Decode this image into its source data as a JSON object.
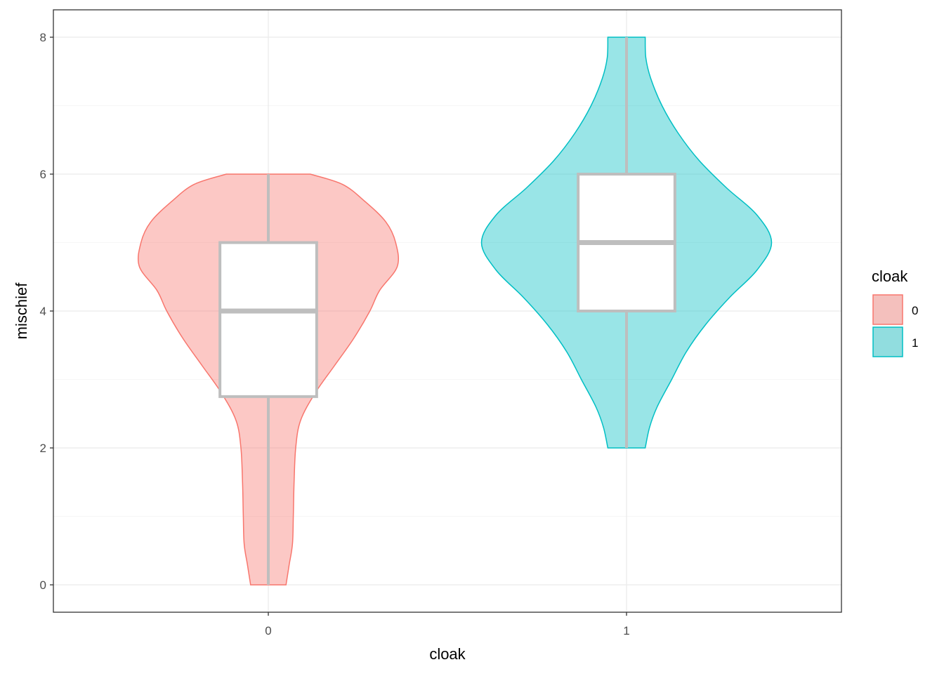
{
  "chart_data": {
    "type": "violin",
    "title": "",
    "xlabel": "cloak",
    "ylabel": "mischief",
    "categories": [
      "0",
      "1"
    ],
    "ylim": [
      -0.4,
      8.4
    ],
    "yticks": [
      0,
      2,
      4,
      6,
      8
    ],
    "grid": true,
    "legend": {
      "title": "cloak",
      "position": "right",
      "entries": [
        {
          "label": "0",
          "fill": "#f8766d",
          "stroke": "#f8766d"
        },
        {
          "label": "1",
          "fill": "#00bfc4",
          "stroke": "#00bfc4"
        }
      ]
    },
    "series": [
      {
        "name": "0",
        "color": "#f8766d",
        "boxplot": {
          "min": 0,
          "q1": 2.75,
          "median": 4,
          "q3": 5,
          "max": 6
        },
        "density_profile": [
          [
            0,
            0.11
          ],
          [
            0.3,
            0.13
          ],
          [
            0.6,
            0.15
          ],
          [
            1.0,
            0.155
          ],
          [
            1.5,
            0.16
          ],
          [
            2.0,
            0.17
          ],
          [
            2.4,
            0.2
          ],
          [
            2.8,
            0.29
          ],
          [
            3.2,
            0.41
          ],
          [
            3.6,
            0.53
          ],
          [
            4.0,
            0.63
          ],
          [
            4.3,
            0.69
          ],
          [
            4.65,
            0.8
          ],
          [
            5.0,
            0.79
          ],
          [
            5.3,
            0.73
          ],
          [
            5.6,
            0.6
          ],
          [
            5.85,
            0.46
          ],
          [
            6.0,
            0.26
          ]
        ]
      },
      {
        "name": "1",
        "color": "#00bfc4",
        "boxplot": {
          "min": 2,
          "q1": 4,
          "median": 5,
          "q3": 6,
          "max": 8
        },
        "density_profile": [
          [
            2.0,
            0.116
          ],
          [
            2.3,
            0.143
          ],
          [
            2.6,
            0.19
          ],
          [
            3.0,
            0.28
          ],
          [
            3.4,
            0.37
          ],
          [
            3.8,
            0.49
          ],
          [
            4.2,
            0.64
          ],
          [
            4.6,
            0.81
          ],
          [
            5.0,
            0.9
          ],
          [
            5.4,
            0.81
          ],
          [
            5.8,
            0.62
          ],
          [
            6.2,
            0.45
          ],
          [
            6.6,
            0.32
          ],
          [
            7.0,
            0.22
          ],
          [
            7.4,
            0.15
          ],
          [
            7.7,
            0.12
          ],
          [
            8.0,
            0.116
          ]
        ]
      }
    ]
  }
}
